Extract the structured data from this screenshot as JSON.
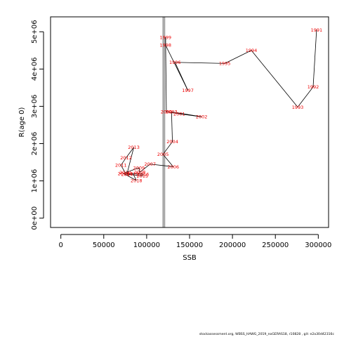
{
  "chart_data": {
    "type": "line",
    "title": "",
    "xlabel": "SSB",
    "ylabel": "R(age 0)",
    "xlim": [
      -12000,
      312000
    ],
    "ylim": [
      -250000,
      5400000
    ],
    "xticks": [
      0,
      50000,
      100000,
      150000,
      200000,
      250000,
      300000
    ],
    "xtick_labels": [
      "0",
      "50000",
      "100000",
      "150000",
      "200000",
      "250000",
      "300000"
    ],
    "yticks": [
      0,
      1000000,
      2000000,
      3000000,
      4000000,
      5000000
    ],
    "ytick_labels": [
      "0e+00",
      "1e+06",
      "2e+06",
      "3e+06",
      "4e+06",
      "5e+06"
    ],
    "reference_line": {
      "orientation": "vertical",
      "x": 120000,
      "color": "#aaaaaa"
    },
    "grid": false,
    "line_color": "#000000",
    "label_color": "#ee0000",
    "points": [
      {
        "year": "1991",
        "x": 298000,
        "y": 5050000
      },
      {
        "year": "1992",
        "x": 294000,
        "y": 3520000
      },
      {
        "year": "1993",
        "x": 276000,
        "y": 2980000
      },
      {
        "year": "1994",
        "x": 222000,
        "y": 4500000
      },
      {
        "year": "1995",
        "x": 191000,
        "y": 4150000
      },
      {
        "year": "1996",
        "x": 133000,
        "y": 4180000
      },
      {
        "year": "1997",
        "x": 148000,
        "y": 3430000
      },
      {
        "year": "1998",
        "x": 122000,
        "y": 4640000
      },
      {
        "year": "1999",
        "x": 122000,
        "y": 4850000
      },
      {
        "year": "2000",
        "x": 123000,
        "y": 2850000
      },
      {
        "year": "2001",
        "x": 138000,
        "y": 2800000
      },
      {
        "year": "2002",
        "x": 164000,
        "y": 2720000
      },
      {
        "year": "2003",
        "x": 129000,
        "y": 2850000
      },
      {
        "year": "2004",
        "x": 130000,
        "y": 2050000
      },
      {
        "year": "2005",
        "x": 119000,
        "y": 1710000
      },
      {
        "year": "2006",
        "x": 131000,
        "y": 1380000
      },
      {
        "year": "2007",
        "x": 104000,
        "y": 1450000
      },
      {
        "year": "2008",
        "x": 92000,
        "y": 1230000
      },
      {
        "year": "2009",
        "x": 91000,
        "y": 1350000
      },
      {
        "year": "2010",
        "x": 75000,
        "y": 1220000
      },
      {
        "year": "2011",
        "x": 70000,
        "y": 1420000
      },
      {
        "year": "2012",
        "x": 76000,
        "y": 1620000
      },
      {
        "year": "2013",
        "x": 85000,
        "y": 1900000
      },
      {
        "year": "2014",
        "x": 77000,
        "y": 1180000
      },
      {
        "year": "2015",
        "x": 95000,
        "y": 1130000
      },
      {
        "year": "2016",
        "x": 96000,
        "y": 1180000
      },
      {
        "year": "2017",
        "x": 73000,
        "y": 1200000
      },
      {
        "year": "2018",
        "x": 88000,
        "y": 1010000
      },
      {
        "year": "2019",
        "x": 84000,
        "y": 1200000
      }
    ]
  },
  "footnote": "stockassessment.org,  WBSS_HAWG_2019_noGERAS18,  r10828 ,  git:  e2a30d42316c"
}
